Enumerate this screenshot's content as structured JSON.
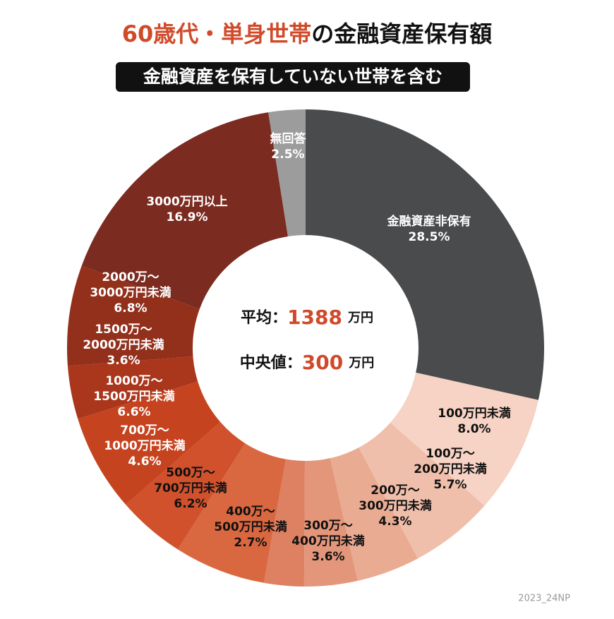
{
  "chart_data": {
    "type": "donut",
    "title_parts": [
      "60歳代・単身世帯",
      "の金融資産保有額"
    ],
    "subtitle": "金融資産を保有していない世帯を含む",
    "center": {
      "mean_label": "平均：",
      "mean": 1388,
      "median_label": "中央値：",
      "median": 300,
      "unit": "万円"
    },
    "categories": [
      [
        "金融資産非保有"
      ],
      [
        "100万円未満"
      ],
      [
        "100万～",
        "200万円未満"
      ],
      [
        "200万～",
        "300万円未満"
      ],
      [
        "300万～",
        "400万円未満"
      ],
      [
        "400万～",
        "500万円未満"
      ],
      [
        "500万～",
        "700万円未満"
      ],
      [
        "700万～",
        "1000万円未満"
      ],
      [
        "1000万～",
        "1500万円未満"
      ],
      [
        "1500万～",
        "2000万円未満"
      ],
      [
        "2000万～",
        "3000万円未満"
      ],
      [
        "3000万円以上"
      ],
      [
        "無回答"
      ]
    ],
    "values": [
      28.5,
      8.0,
      5.7,
      4.3,
      3.6,
      2.7,
      6.2,
      4.6,
      6.6,
      3.6,
      6.8,
      16.9,
      2.5
    ],
    "value_labels": [
      "28.5%",
      "8.0%",
      "5.7%",
      "4.3%",
      "3.6%",
      "2.7%",
      "6.2%",
      "4.6%",
      "6.6%",
      "3.6%",
      "6.8%",
      "16.9%",
      "2.5%"
    ],
    "colors": [
      "#4a4b4d",
      "#f6d3c4",
      "#f0bfab",
      "#eaab93",
      "#e4967b",
      "#de8062",
      "#d96841",
      "#d0512c",
      "#c6431f",
      "#aa361c",
      "#92301c",
      "#7b2b1f",
      "#9c9c9c"
    ],
    "label_colors": [
      "#ffffff",
      "#111111",
      "#111111",
      "#111111",
      "#111111",
      "#111111",
      "#111111",
      "#ffffff",
      "#ffffff",
      "#ffffff",
      "#ffffff",
      "#ffffff",
      "#ffffff"
    ],
    "footnote": "2023_24NP"
  }
}
